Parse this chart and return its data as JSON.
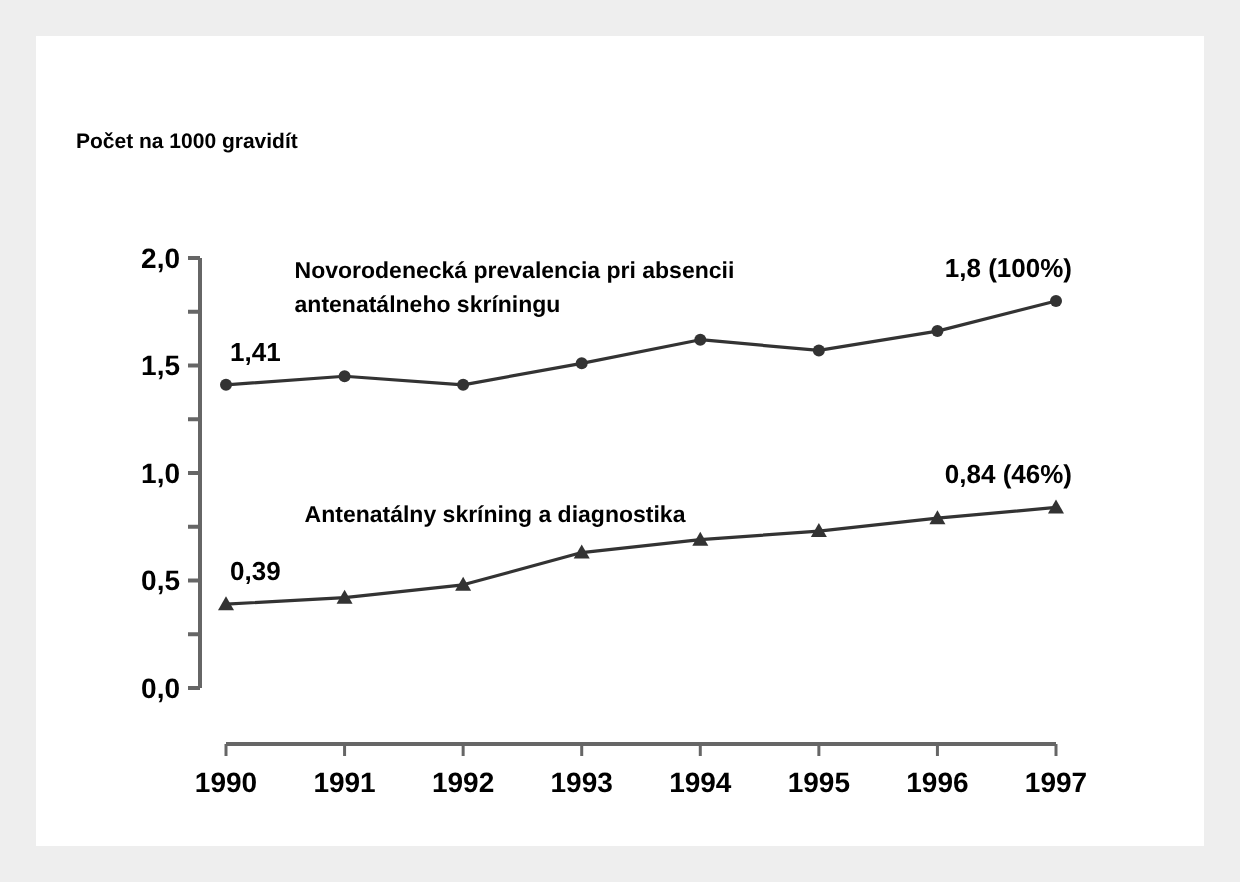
{
  "chart_data": {
    "type": "line",
    "ylabel": "Počet na 1000 gravidít",
    "categories": [
      "1990",
      "1991",
      "1992",
      "1993",
      "1994",
      "1995",
      "1996",
      "1997"
    ],
    "series": [
      {
        "name": "Novorodenecká prevalencia pri absencii antenatálneho skríningu",
        "color": "#333333",
        "marker": "circle",
        "values": [
          1.41,
          1.45,
          1.41,
          1.51,
          1.62,
          1.57,
          1.66,
          1.8
        ],
        "value_labels": [
          "1,41",
          null,
          null,
          null,
          null,
          null,
          null,
          "1,8 (100%)"
        ]
      },
      {
        "name": "Antenatálny skríning a diagnostika",
        "color": "#333333",
        "marker": "triangle",
        "values": [
          0.39,
          0.42,
          0.48,
          0.63,
          0.69,
          0.73,
          0.79,
          0.84
        ],
        "value_labels": [
          "0,39",
          null,
          null,
          null,
          null,
          null,
          null,
          "0,84 (46%)"
        ]
      }
    ],
    "ylim": [
      0,
      2
    ],
    "yticks": [
      {
        "value": 0,
        "label": "0,0"
      },
      {
        "value": 0.25,
        "label": null
      },
      {
        "value": 0.5,
        "label": "0,5"
      },
      {
        "value": 0.75,
        "label": null
      },
      {
        "value": 1,
        "label": "1,0"
      },
      {
        "value": 1.25,
        "label": null
      },
      {
        "value": 1.5,
        "label": "1,5"
      },
      {
        "value": 1.75,
        "label": null
      },
      {
        "value": 2,
        "label": "2,0"
      }
    ],
    "grid": false,
    "line_style": "solid"
  }
}
